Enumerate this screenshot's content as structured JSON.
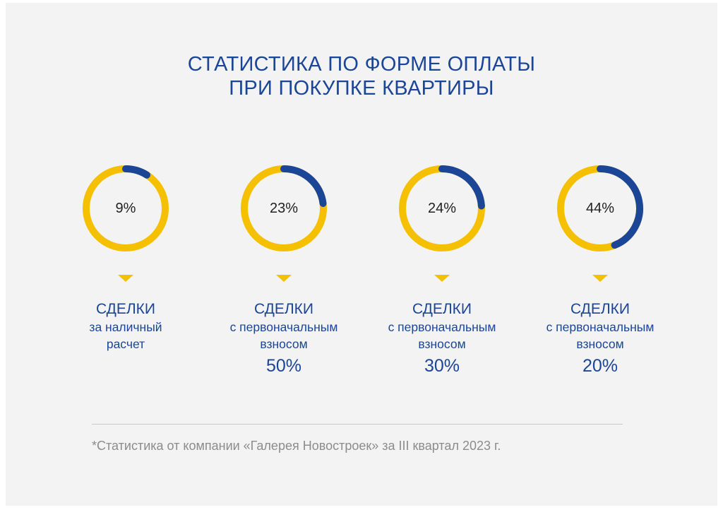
{
  "title": {
    "line1": "СТАТИСТИКА ПО ФОРМЕ ОПЛАТЫ",
    "line2": "ПРИ ПОКУПКЕ КВАРТИРЫ"
  },
  "colors": {
    "track": "#f5c000",
    "progress": "#1b4596",
    "text": "#1b4596"
  },
  "chart_data": {
    "type": "pie",
    "title": "СТАТИСТИКА ПО ФОРМЕ ОПЛАТЫ ПРИ ПОКУПКЕ КВАРТИРЫ",
    "items": [
      {
        "value": 9,
        "value_label": "9%",
        "label1": "СДЕЛКИ",
        "label2": "за наличный",
        "label3": "расчет",
        "label4": ""
      },
      {
        "value": 23,
        "value_label": "23%",
        "label1": "СДЕЛКИ",
        "label2": "с первоначальным",
        "label3": "взносом",
        "label4": "50%"
      },
      {
        "value": 24,
        "value_label": "24%",
        "label1": "СДЕЛКИ",
        "label2": "с первоначальным",
        "label3": "взносом",
        "label4": "30%"
      },
      {
        "value": 44,
        "value_label": "44%",
        "label1": "СДЕЛКИ",
        "label2": "с первоначальным",
        "label3": "взносом",
        "label4": "20%"
      }
    ]
  },
  "footnote": "*Статистика от компании «Галерея Новостроек» за III квартал 2023 г."
}
